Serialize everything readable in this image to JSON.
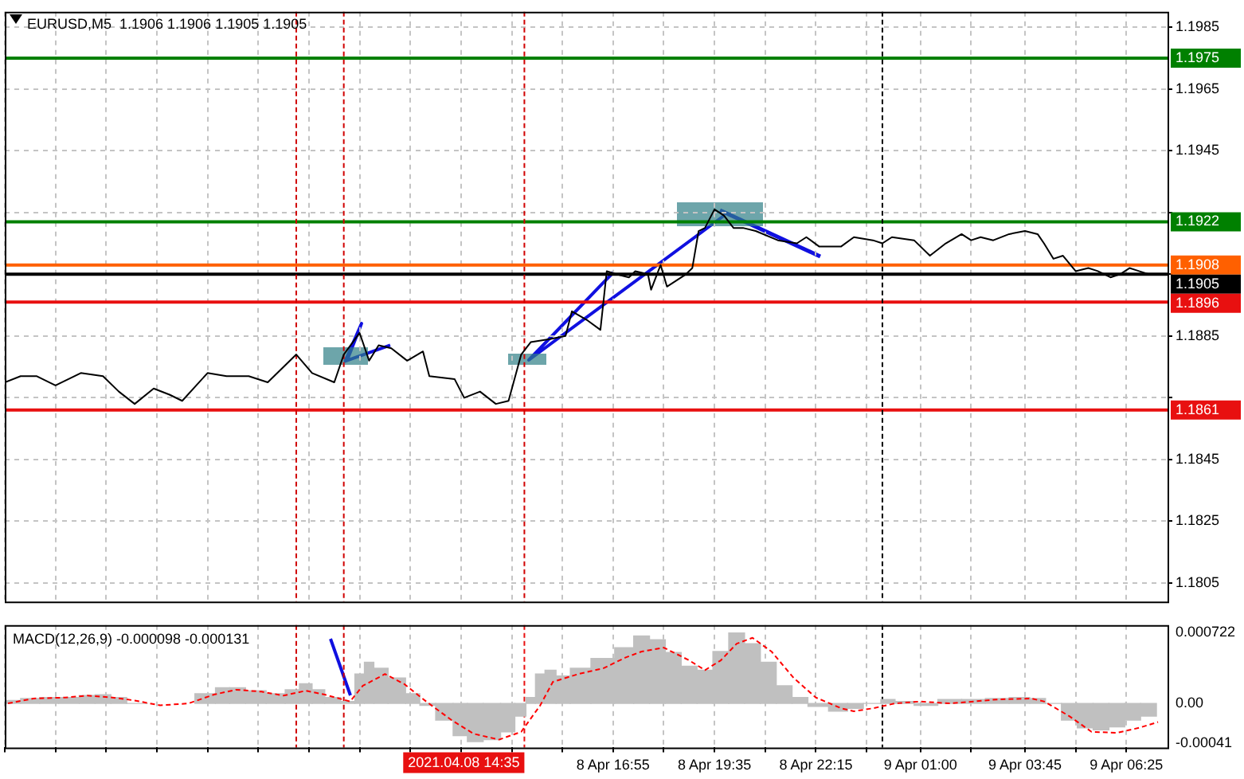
{
  "chart_data": [
    {
      "type": "line",
      "title": "EURUSD,M5  1.1906 1.1906 1.1905 1.1905",
      "x": [
        "2021-04-08T00:55",
        "2021-04-08T01:20",
        "2021-04-08T01:45",
        "2021-04-08T02:15",
        "2021-04-08T02:55",
        "2021-04-08T03:30",
        "2021-04-08T03:55",
        "2021-04-08T04:20",
        "2021-04-08T04:50",
        "2021-04-08T05:15",
        "2021-04-08T05:35",
        "2021-04-08T06:15",
        "2021-04-08T06:45",
        "2021-04-08T07:20",
        "2021-04-08T07:50",
        "2021-04-08T08:35",
        "2021-04-08T09:00",
        "2021-04-08T09:35",
        "2021-04-08T09:50",
        "2021-04-08T10:15",
        "2021-04-08T10:30",
        "2021-04-08T10:45",
        "2021-04-08T11:05",
        "2021-04-08T11:30",
        "2021-04-08T11:55",
        "2021-04-08T12:05",
        "2021-04-08T12:45",
        "2021-04-08T13:00",
        "2021-04-08T13:25",
        "2021-04-08T13:50",
        "2021-04-08T14:10",
        "2021-04-08T14:30",
        "2021-04-08T14:45",
        "2021-04-08T15:15",
        "2021-04-08T15:40",
        "2021-04-08T15:50",
        "2021-04-08T16:15",
        "2021-04-08T16:35",
        "2021-04-08T16:45",
        "2021-04-08T17:00",
        "2021-04-08T17:20",
        "2021-04-08T17:30",
        "2021-04-08T17:50",
        "2021-04-08T17:55",
        "2021-04-08T18:10",
        "2021-04-08T18:20",
        "2021-04-08T18:35",
        "2021-04-08T18:50",
        "2021-04-08T19:00",
        "2021-04-08T19:10",
        "2021-04-08T19:20",
        "2021-04-08T19:35",
        "2021-04-08T19:50",
        "2021-04-08T20:05",
        "2021-04-08T20:20",
        "2021-04-08T20:40",
        "2021-04-08T21:15",
        "2021-04-08T21:45",
        "2021-04-08T22:00",
        "2021-04-08T22:20",
        "2021-04-08T22:55",
        "2021-04-08T23:15",
        "2021-04-08T23:45",
        "2021-04-09T00:00",
        "2021-04-09T00:15",
        "2021-04-09T00:50",
        "2021-04-09T01:15",
        "2021-04-09T01:40",
        "2021-04-09T02:05",
        "2021-04-09T02:20",
        "2021-04-09T02:35",
        "2021-04-09T02:55",
        "2021-04-09T03:20",
        "2021-04-09T03:45",
        "2021-04-09T04:05",
        "2021-04-09T04:15",
        "2021-04-09T04:30",
        "2021-04-09T04:45",
        "2021-04-09T05:05",
        "2021-04-09T05:25",
        "2021-04-09T05:40",
        "2021-04-09T06:00",
        "2021-04-09T06:15",
        "2021-04-09T06:30",
        "2021-04-09T06:45",
        "2021-04-09T07:00"
      ],
      "series": [
        {
          "color": "#000000",
          "values": [
            1.187,
            1.1872,
            1.1872,
            1.1869,
            1.1873,
            1.1872,
            1.1867,
            1.1863,
            1.1868,
            1.1866,
            1.1864,
            1.1873,
            1.1872,
            1.1872,
            1.187,
            1.1879,
            1.1873,
            1.187,
            1.1879,
            1.1886,
            1.1877,
            1.1882,
            1.1881,
            1.1877,
            1.188,
            1.1872,
            1.1871,
            1.1865,
            1.1867,
            1.1863,
            1.1864,
            1.1879,
            1.1883,
            1.1884,
            1.1885,
            1.1893,
            1.189,
            1.1887,
            1.1906,
            1.1905,
            1.1904,
            1.1906,
            1.1905,
            1.19,
            1.1908,
            1.1901,
            1.1903,
            1.1905,
            1.1907,
            1.1919,
            1.192,
            1.1926,
            1.1924,
            1.192,
            1.192,
            1.1919,
            1.1916,
            1.1915,
            1.1917,
            1.1914,
            1.1914,
            1.1917,
            1.1916,
            1.1915,
            1.1917,
            1.1916,
            1.1911,
            1.1915,
            1.1918,
            1.1916,
            1.1917,
            1.1916,
            1.1918,
            1.1919,
            1.1918,
            1.1915,
            1.191,
            1.1911,
            1.1906,
            1.1907,
            1.1906,
            1.1904,
            1.1905,
            1.1907,
            1.1906,
            1.1905
          ]
        }
      ],
      "xlim": [
        "2021-04-08T00:55",
        "2021-04-09T07:30"
      ],
      "ylim": [
        1.1799,
        1.199
      ],
      "xticks": [
        {
          "value": "2021-04-08T00:55",
          "label": null
        },
        {
          "value": "2021-04-08T02:15",
          "label": null
        },
        {
          "value": "2021-04-08T03:35",
          "label": null
        },
        {
          "value": "2021-04-08T04:55",
          "label": null
        },
        {
          "value": "2021-04-08T06:15",
          "label": null
        },
        {
          "value": "2021-04-08T07:35",
          "label": null
        },
        {
          "value": "2021-04-08T08:55",
          "label": null
        },
        {
          "value": "2021-04-08T10:15",
          "label": null
        },
        {
          "value": "2021-04-08T11:35",
          "label": null
        },
        {
          "value": "2021-04-08T12:55",
          "label": null
        },
        {
          "value": "2021-04-08T14:15",
          "label": null
        },
        {
          "value": "2021-04-08T15:35",
          "label": null
        },
        {
          "value": "2021-04-08T16:55",
          "label": null
        },
        {
          "value": "2021-04-08T18:15",
          "label": null
        },
        {
          "value": "2021-04-08T19:35",
          "label": null
        },
        {
          "value": "2021-04-08T20:55",
          "label": null
        },
        {
          "value": "2021-04-08T22:15",
          "label": null
        },
        {
          "value": "2021-04-08T23:35",
          "label": null
        },
        {
          "value": "2021-04-09T01:00",
          "label": null
        },
        {
          "value": "2021-04-09T02:20",
          "label": null
        },
        {
          "value": "2021-04-09T03:45",
          "label": null
        },
        {
          "value": "2021-04-09T05:05",
          "label": null
        },
        {
          "value": "2021-04-09T06:25",
          "label": null
        }
      ],
      "yticks": [
        1.1805,
        1.1825,
        1.1845,
        {
          "value": 1.1865,
          "label": null
        },
        1.1885,
        {
          "value": 1.1905,
          "label": null
        },
        {
          "value": 1.1925,
          "label": null
        },
        1.1945,
        1.1965,
        1.1985
      ],
      "tick_labels": "y",
      "grid": true,
      "marker": "none",
      "line_style": "solid",
      "ref_lines": [
        {
          "axis": "y",
          "value": 1.1975,
          "label": "1.1975",
          "color": "#008000",
          "line_style": "solid"
        },
        {
          "axis": "y",
          "value": 1.1922,
          "label": "1.1922",
          "color": "#008000",
          "line_style": "solid"
        },
        {
          "axis": "y",
          "value": 1.1908,
          "label": "1.1908",
          "color": "#ff6000",
          "line_style": "solid"
        },
        {
          "axis": "y",
          "value": 1.1905,
          "label": "1.1905",
          "color": "#000000",
          "line_style": "solid"
        },
        {
          "axis": "y",
          "value": 1.1896,
          "label": "1.1896",
          "color": "#e81010",
          "line_style": "solid"
        },
        {
          "axis": "y",
          "value": 1.1861,
          "label": "1.1861",
          "color": "#e81010",
          "line_style": "solid"
        },
        {
          "axis": "x",
          "value": "2021-04-08T08:35",
          "color": "#d00000",
          "line_style": "dashed"
        },
        {
          "axis": "x",
          "value": "2021-04-08T09:50",
          "color": "#d00000",
          "line_style": "dashed"
        },
        {
          "axis": "x",
          "value": "2021-04-08T14:35",
          "color": "#d00000",
          "line_style": "dashed"
        },
        {
          "axis": "x",
          "value": "2021-04-09T00:00",
          "color": "#000000",
          "line_style": "dashed"
        }
      ]
    },
    {
      "type": "bar",
      "title": "MACD(12,26,9) -0.000098 -0.000131",
      "series": [
        {
          "type": "bar",
          "color": "#c0c0c0",
          "x": [
            "2021-04-08T01:00",
            "2021-04-08T01:40",
            "2021-04-08T02:00",
            "2021-04-08T02:40",
            "2021-04-08T03:05",
            "2021-04-08T03:30",
            "2021-04-08T03:55",
            "2021-04-08T04:20",
            "2021-04-08T05:00",
            "2021-04-08T05:35",
            "2021-04-08T06:15",
            "2021-04-08T06:40",
            "2021-04-08T07:00",
            "2021-04-08T07:30",
            "2021-04-08T08:05",
            "2021-04-08T08:30",
            "2021-04-08T08:50",
            "2021-04-08T09:10",
            "2021-04-08T09:30",
            "2021-04-08T10:00",
            "2021-04-08T10:15",
            "2021-04-08T10:30",
            "2021-04-08T10:45",
            "2021-04-08T11:15",
            "2021-04-08T11:40",
            "2021-04-08T12:00",
            "2021-04-08T12:30",
            "2021-04-08T12:55",
            "2021-04-08T13:15",
            "2021-04-08T13:45",
            "2021-04-08T14:10",
            "2021-04-08T14:30",
            "2021-04-08T14:45",
            "2021-04-08T15:00",
            "2021-04-08T15:15",
            "2021-04-08T15:35",
            "2021-04-08T16:00",
            "2021-04-08T16:40",
            "2021-04-08T17:15",
            "2021-04-08T17:40",
            "2021-04-08T18:05",
            "2021-04-08T18:30",
            "2021-04-08T18:55",
            "2021-04-08T19:20",
            "2021-04-08T19:45",
            "2021-04-08T20:10",
            "2021-04-08T20:35",
            "2021-04-08T21:00",
            "2021-04-08T21:25",
            "2021-04-08T21:50",
            "2021-04-08T22:15",
            "2021-04-08T22:55",
            "2021-04-08T23:15",
            "2021-04-08T23:45",
            "2021-04-09T00:10",
            "2021-04-09T00:30",
            "2021-04-09T01:10",
            "2021-04-09T01:45",
            "2021-04-09T02:25",
            "2021-04-09T03:00",
            "2021-04-09T03:40",
            "2021-04-09T04:05",
            "2021-04-09T04:30",
            "2021-04-09T04:55",
            "2021-04-09T05:20",
            "2021-04-09T05:45",
            "2021-04-09T06:10",
            "2021-04-09T06:35",
            "2021-04-09T07:00"
          ],
          "values": [
            3e-05,
            5e-05,
            6e-05,
            6e-05,
            8e-05,
            9e-05,
            6e-05,
            0,
            null,
            null,
            0.0001,
            0.00016,
            0.00016,
            0.00013,
            0.0001,
            0.00014,
            0.0002,
            0.00014,
            6e-05,
            2e-05,
            0.0003,
            0.00042,
            0.00036,
            0.00026,
            0.0001,
            -2e-05,
            -0.00017,
            -0.00033,
            -0.00039,
            -0.00037,
            -0.00029,
            -0.00013,
            6e-05,
            0.0003,
            0.00034,
            0.00028,
            0.00036,
            0.00046,
            0.00057,
            0.00069,
            0.00065,
            0.00052,
            0.00038,
            0.00034,
            0.00053,
            0.00072,
            0.00061,
            0.00042,
            0.00018,
            6e-05,
            -3e-05,
            -8e-05,
            -5e-05,
            0,
            4e-05,
            2e-05,
            -2e-05,
            4e-05,
            4e-05,
            5e-05,
            6e-05,
            5e-05,
            0,
            -0.00017,
            -0.00025,
            -0.00027,
            -0.00024,
            -0.00017,
            -0.00013
          ]
        },
        {
          "type": "line",
          "color": "#ff0000",
          "line_style": "dashed",
          "x": [
            "2021-04-08T01:00",
            "2021-04-08T01:40",
            "2021-04-08T02:30",
            "2021-04-08T03:05",
            "2021-04-08T03:45",
            "2021-04-08T04:20",
            "2021-04-08T05:00",
            "2021-04-08T05:45",
            "2021-04-08T06:25",
            "2021-04-08T07:00",
            "2021-04-08T07:40",
            "2021-04-08T08:15",
            "2021-04-08T08:50",
            "2021-04-08T09:20",
            "2021-04-08T10:00",
            "2021-04-08T10:20",
            "2021-04-08T10:55",
            "2021-04-08T11:25",
            "2021-04-08T12:00",
            "2021-04-08T12:40",
            "2021-04-08T13:15",
            "2021-04-08T13:55",
            "2021-04-08T14:30",
            "2021-04-08T15:00",
            "2021-04-08T15:20",
            "2021-04-08T16:00",
            "2021-04-08T16:40",
            "2021-04-08T17:15",
            "2021-04-08T17:40",
            "2021-04-08T18:15",
            "2021-04-08T18:55",
            "2021-04-08T19:20",
            "2021-04-08T19:45",
            "2021-04-08T20:10",
            "2021-04-08T20:35",
            "2021-04-08T21:05",
            "2021-04-08T21:40",
            "2021-04-08T22:15",
            "2021-04-08T22:55",
            "2021-04-08T23:15",
            "2021-04-08T23:45",
            "2021-04-09T00:20",
            "2021-04-09T01:00",
            "2021-04-09T01:45",
            "2021-04-09T02:25",
            "2021-04-09T03:00",
            "2021-04-09T03:55",
            "2021-04-09T04:15",
            "2021-04-09T04:55",
            "2021-04-09T05:30",
            "2021-04-09T06:10",
            "2021-04-09T06:45",
            "2021-04-09T07:15"
          ],
          "values": [
            0,
            5e-05,
            6e-05,
            8e-05,
            6e-05,
            3e-05,
            -2e-05,
            0,
            9e-05,
            0.00014,
            0.00012,
            8e-05,
            0.00013,
            9e-05,
            2e-05,
            0.00018,
            0.0003,
            0.0002,
            2e-05,
            -0.00017,
            -0.00031,
            -0.00037,
            -0.00029,
            -2e-05,
            0.00022,
            0.0003,
            0.00036,
            0.00047,
            0.00053,
            0.00057,
            0.00044,
            0.00034,
            0.00044,
            0.00061,
            0.00067,
            0.00053,
            0.00026,
            6e-05,
            -5e-05,
            -8e-05,
            -5e-05,
            0,
            2e-05,
            0,
            2e-05,
            4e-05,
            5e-05,
            2e-05,
            -0.00013,
            -0.00029,
            -0.0003,
            -0.00025,
            -0.00019
          ]
        }
      ],
      "xlim": [
        "2021-04-08T00:55",
        "2021-04-09T07:30"
      ],
      "ylim": [
        -0.00045,
        0.0008
      ],
      "xticks": [
        {
          "value": "2021-04-08T00:55",
          "label": null
        },
        {
          "value": "2021-04-08T02:15",
          "label": null
        },
        {
          "value": "2021-04-08T03:35",
          "label": null
        },
        {
          "value": "2021-04-08T04:55",
          "label": null
        },
        {
          "value": "2021-04-08T06:15",
          "label": null
        },
        {
          "value": "2021-04-08T07:35",
          "label": null
        },
        {
          "value": "2021-04-08T08:55",
          "label": null
        },
        {
          "value": "2021-04-08T10:15",
          "label": null
        },
        {
          "value": "2021-04-08T11:35",
          "label": null
        },
        {
          "value": "2021-04-08T12:55",
          "label": null
        },
        {
          "value": "2021-04-08T14:15",
          "label": null
        },
        {
          "value": "2021-04-08T15:35",
          "label": null
        },
        {
          "value": "2021-04-08T16:55",
          "label": "8 Apr 16:55"
        },
        {
          "value": "2021-04-08T18:15",
          "label": null
        },
        {
          "value": "2021-04-08T19:35",
          "label": "8 Apr 19:35"
        },
        {
          "value": "2021-04-08T20:55",
          "label": null
        },
        {
          "value": "2021-04-08T22:15",
          "label": "8 Apr 22:15"
        },
        {
          "value": "2021-04-08T23:35",
          "label": null
        },
        {
          "value": "2021-04-09T01:00",
          "label": "9 Apr 01:00"
        },
        {
          "value": "2021-04-09T02:20",
          "label": null
        },
        {
          "value": "2021-04-09T03:45",
          "label": "9 Apr 03:45"
        },
        {
          "value": "2021-04-09T05:05",
          "label": null
        },
        {
          "value": "2021-04-09T06:25",
          "label": "9 Apr 06:25"
        }
      ],
      "yticks": [
        -0.00041,
        {
          "value": 0,
          "label": "0.00"
        },
        0.000722
      ],
      "grid": "x",
      "marker": "none",
      "ref_lines": [
        {
          "axis": "x",
          "value": "2021-04-08T08:35",
          "color": "#d00000",
          "line_style": "dashed"
        },
        {
          "axis": "x",
          "value": "2021-04-08T09:50",
          "color": "#d00000",
          "line_style": "dashed"
        },
        {
          "axis": "x",
          "value": "2021-04-08T14:35",
          "label": "2021.04.08 14:35",
          "color": "#e81010",
          "line_style": "dashed"
        },
        {
          "axis": "x",
          "value": "2021-04-09T00:00",
          "color": "#000000",
          "line_style": "dashed"
        }
      ]
    }
  ]
}
